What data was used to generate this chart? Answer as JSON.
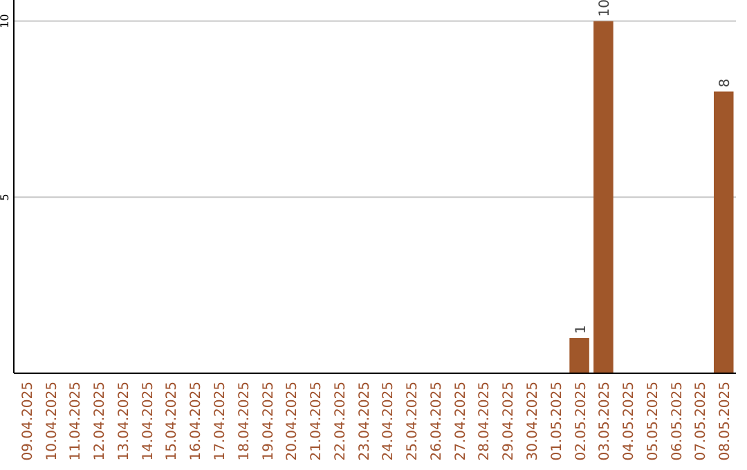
{
  "chart_data": {
    "type": "bar",
    "categories": [
      "09.04.2025",
      "10.04.2025",
      "11.04.2025",
      "12.04.2025",
      "13.04.2025",
      "14.04.2025",
      "15.04.2025",
      "16.04.2025",
      "17.04.2025",
      "18.04.2025",
      "19.04.2025",
      "20.04.2025",
      "21.04.2025",
      "22.04.2025",
      "23.04.2025",
      "24.04.2025",
      "25.04.2025",
      "26.04.2025",
      "27.04.2025",
      "28.04.2025",
      "29.04.2025",
      "30.04.2025",
      "01.05.2025",
      "02.05.2025",
      "03.05.2025",
      "04.05.2025",
      "05.05.2025",
      "06.05.2025",
      "07.05.2025",
      "08.05.2025"
    ],
    "values": [
      0,
      0,
      0,
      0,
      0,
      0,
      0,
      0,
      0,
      0,
      0,
      0,
      0,
      0,
      0,
      0,
      0,
      0,
      0,
      0,
      0,
      0,
      0,
      1,
      10,
      0,
      0,
      0,
      0,
      8
    ],
    "value_labels": [
      null,
      null,
      null,
      null,
      null,
      null,
      null,
      null,
      null,
      null,
      null,
      null,
      null,
      null,
      null,
      null,
      null,
      null,
      null,
      null,
      null,
      null,
      null,
      "1",
      "10",
      null,
      null,
      null,
      null,
      "8"
    ],
    "color": "#a0572a",
    "ylim": [
      0,
      10.6
    ],
    "yticks": [
      5,
      10
    ],
    "grid": "y"
  }
}
